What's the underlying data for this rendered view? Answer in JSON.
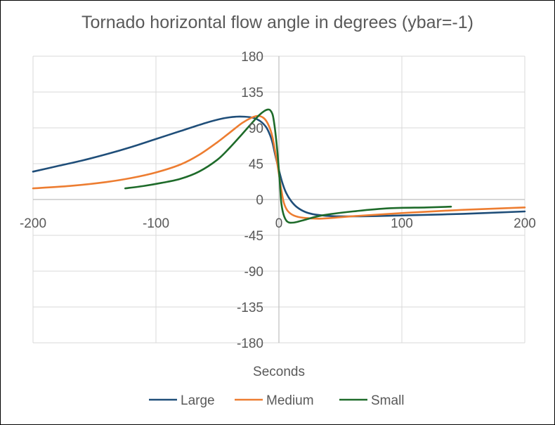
{
  "chart_data": {
    "type": "scatter",
    "title": "Tornado horizontal flow angle in degrees (ybar=-1)",
    "xlabel": "Seconds",
    "ylabel": "",
    "xlim": [
      -200,
      200
    ],
    "ylim": [
      -180,
      180
    ],
    "x_ticks": [
      -200,
      -100,
      0,
      100,
      200
    ],
    "x_tick_labels": [
      "-200",
      "-100",
      "0",
      "100",
      "200"
    ],
    "y_ticks": [
      180,
      135,
      90,
      45,
      0,
      -45,
      -90,
      -135,
      -180
    ],
    "y_tick_labels": [
      "180",
      "135",
      "90",
      "45",
      "0",
      "-45",
      "-90",
      "-135",
      "-180"
    ],
    "grid": true,
    "lines_smooth": true,
    "legend": "bottom",
    "series": [
      {
        "name": "Large",
        "color": "#1f4e79",
        "x": [
          -200,
          -180,
          -160,
          -140,
          -120,
          -100,
          -80,
          -60,
          -45,
          -35,
          -28,
          -22,
          -18,
          -14,
          -10,
          -7,
          -5,
          -3,
          0,
          3,
          6,
          10,
          15,
          22,
          30,
          45,
          70,
          100,
          150,
          200
        ],
        "y": [
          35,
          42,
          49,
          57,
          66,
          76,
          86,
          96,
          102,
          104,
          104,
          103,
          101,
          97,
          90,
          80,
          70,
          56,
          37,
          20,
          8,
          -2,
          -10,
          -16,
          -19,
          -21,
          -21,
          -20,
          -18,
          -15
        ]
      },
      {
        "name": "Medium",
        "color": "#ed7d31",
        "x": [
          -200,
          -170,
          -140,
          -120,
          -100,
          -80,
          -65,
          -50,
          -40,
          -30,
          -22,
          -17,
          -13,
          -10,
          -7,
          -5,
          -3,
          -1,
          0,
          2,
          4,
          7,
          12,
          20,
          35,
          60,
          100,
          150,
          200
        ],
        "y": [
          14,
          17,
          22,
          27,
          34,
          44,
          56,
          72,
          84,
          96,
          103,
          105,
          103,
          98,
          88,
          77,
          60,
          42,
          32,
          12,
          -4,
          -14,
          -20,
          -23,
          -24,
          -21,
          -17,
          -13,
          -10
        ]
      },
      {
        "name": "Small",
        "color": "#1e6b2a",
        "x": [
          -125,
          -110,
          -95,
          -80,
          -65,
          -50,
          -40,
          -30,
          -22,
          -16,
          -12,
          -9,
          -7,
          -5,
          -3.5,
          -2,
          -1,
          0,
          1,
          2,
          4,
          7,
          12,
          20,
          35,
          60,
          90,
          120,
          140
        ],
        "y": [
          14,
          17,
          21,
          26,
          35,
          50,
          65,
          82,
          96,
          106,
          111,
          113,
          112,
          106,
          92,
          72,
          56,
          37,
          15,
          -5,
          -20,
          -28,
          -29,
          -26,
          -20,
          -15,
          -11,
          -10,
          -9
        ]
      }
    ]
  }
}
